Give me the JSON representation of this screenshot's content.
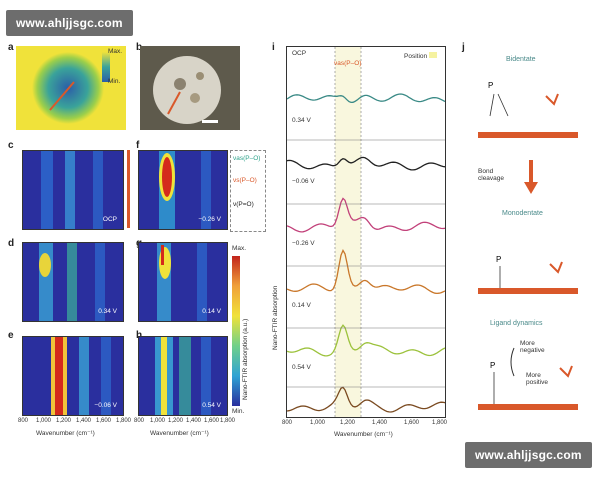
{
  "watermarks": {
    "top": "www.ahljjsgc.com",
    "bottom": "www.ahljjsgc.com"
  },
  "panel_labels": {
    "a": "a",
    "b": "b",
    "c": "c",
    "d": "d",
    "e": "e",
    "f": "f",
    "g": "g",
    "h": "h",
    "i": "i",
    "j": "j"
  },
  "colorbar_a": {
    "max": "Max.",
    "min": "Min."
  },
  "spectra_maps": {
    "c": "OCP",
    "f": "−0.26 V",
    "d": "0.34 V",
    "g": "0.14 V",
    "e": "−0.06 V",
    "h": "0.54 V"
  },
  "legend_modes": {
    "m1": "νas(P–O)",
    "m2": "νs(P–O)",
    "m3": "ν(P=O)"
  },
  "colorbar_main": {
    "max": "Max.",
    "min": "Min.",
    "label": "Nano-FTIR absorption (a.u.)"
  },
  "x_axis_left": {
    "label": "Wavenumber (cm⁻¹)",
    "ticks": [
      "800",
      "1,000",
      "1,200",
      "1,400",
      "1,600",
      "1,800"
    ]
  },
  "panel_i": {
    "ylabel": "Nano-FTIR absorption",
    "xlabel": "Wavenumber (cm⁻¹)",
    "xticks": [
      "800",
      "1,000",
      "1,200",
      "1,400",
      "1,600",
      "1,800"
    ],
    "position_legend": "Position",
    "band_label": "νas(P–O)",
    "traces": [
      "OCP",
      "0.34 V",
      "−0.06 V",
      "−0.26 V",
      "0.14 V",
      "0.54 V"
    ],
    "colors": [
      "#3a8a86",
      "#222222",
      "#c2417a",
      "#c9772a",
      "#9cc23c",
      "#7a4a20"
    ]
  },
  "panel_j": {
    "bidentate": "Bidentate",
    "bond_cleavage": "Bond\ncleavage",
    "monodentate": "Monodentate",
    "ligand_dynamics": "Ligand dynamics",
    "more_negative": "More\nnegative",
    "more_positive": "More\npositive",
    "accent": "#d9582a"
  }
}
